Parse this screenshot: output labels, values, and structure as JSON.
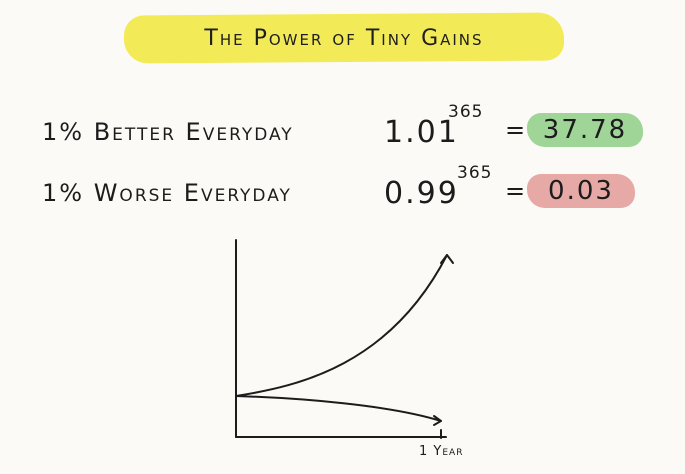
{
  "title": "The Power of Tiny Gains",
  "rows": [
    {
      "label": "1% Better Everyday",
      "base": "1.01",
      "exponent": "365",
      "equals": "=",
      "result": "37.78",
      "highlight_color": "#9fd597"
    },
    {
      "label": "1% Worse Everyday",
      "base": "0.99",
      "exponent": "365",
      "equals": "=",
      "result": "0.03",
      "highlight_color": "#e7a9a6"
    }
  ],
  "graph": {
    "x_tick_label": "1 Year"
  },
  "colors": {
    "title_highlight": "#f3ea57",
    "ink": "#1c1c1c",
    "background": "#fbfaf6"
  }
}
